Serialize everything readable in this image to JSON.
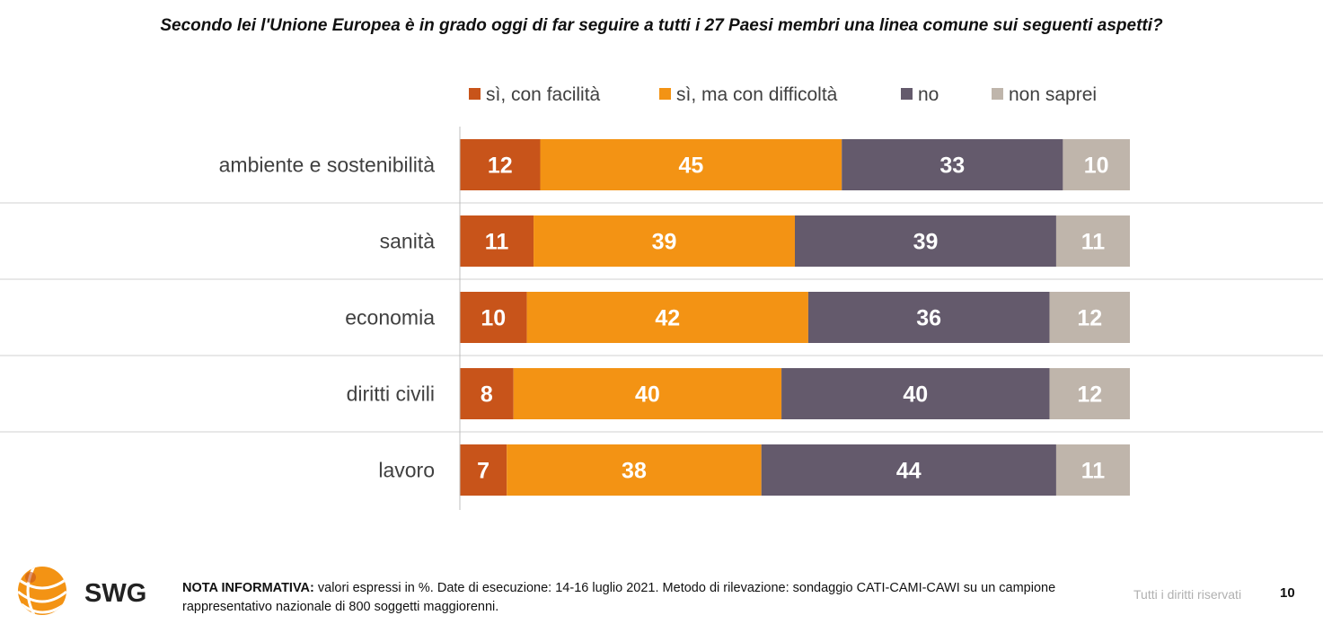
{
  "chart_data": {
    "type": "bar",
    "orientation": "horizontal",
    "stacked": true,
    "title": "Secondo lei l'Unione Europea è in grado oggi di far seguire a tutti i 27 Paesi membri una linea comune sui seguenti aspetti?",
    "categories": [
      "ambiente e sostenibilità",
      "sanità",
      "economia",
      "diritti civili",
      "lavoro"
    ],
    "series": [
      {
        "name": "sì, con facilità",
        "color": "#c8541a",
        "values": [
          12,
          11,
          10,
          8,
          7
        ]
      },
      {
        "name": "sì, ma con difficoltà",
        "color": "#f39314",
        "values": [
          45,
          39,
          42,
          40,
          38
        ]
      },
      {
        "name": "no",
        "color": "#645a6c",
        "values": [
          33,
          39,
          36,
          40,
          44
        ]
      },
      {
        "name": "non saprei",
        "color": "#bfb5ab",
        "values": [
          10,
          11,
          12,
          12,
          11
        ]
      }
    ],
    "xlim": [
      0,
      100
    ],
    "legend_position": "top",
    "data_labels": true,
    "gridlines": false
  },
  "footer": {
    "note_label": "NOTA INFORMATIVA:",
    "note_text": " valori espressi in %. Date di esecuzione: 14-16 luglio 2021. Metodo di rilevazione: sondaggio CATI-CAMI-CAWI su un campione rappresentativo nazionale di 800 soggetti maggiorenni.",
    "rights": "Tutti i diritti riservati",
    "page_number": "10"
  },
  "logo": {
    "text": "SWG",
    "color": "#f39314"
  }
}
